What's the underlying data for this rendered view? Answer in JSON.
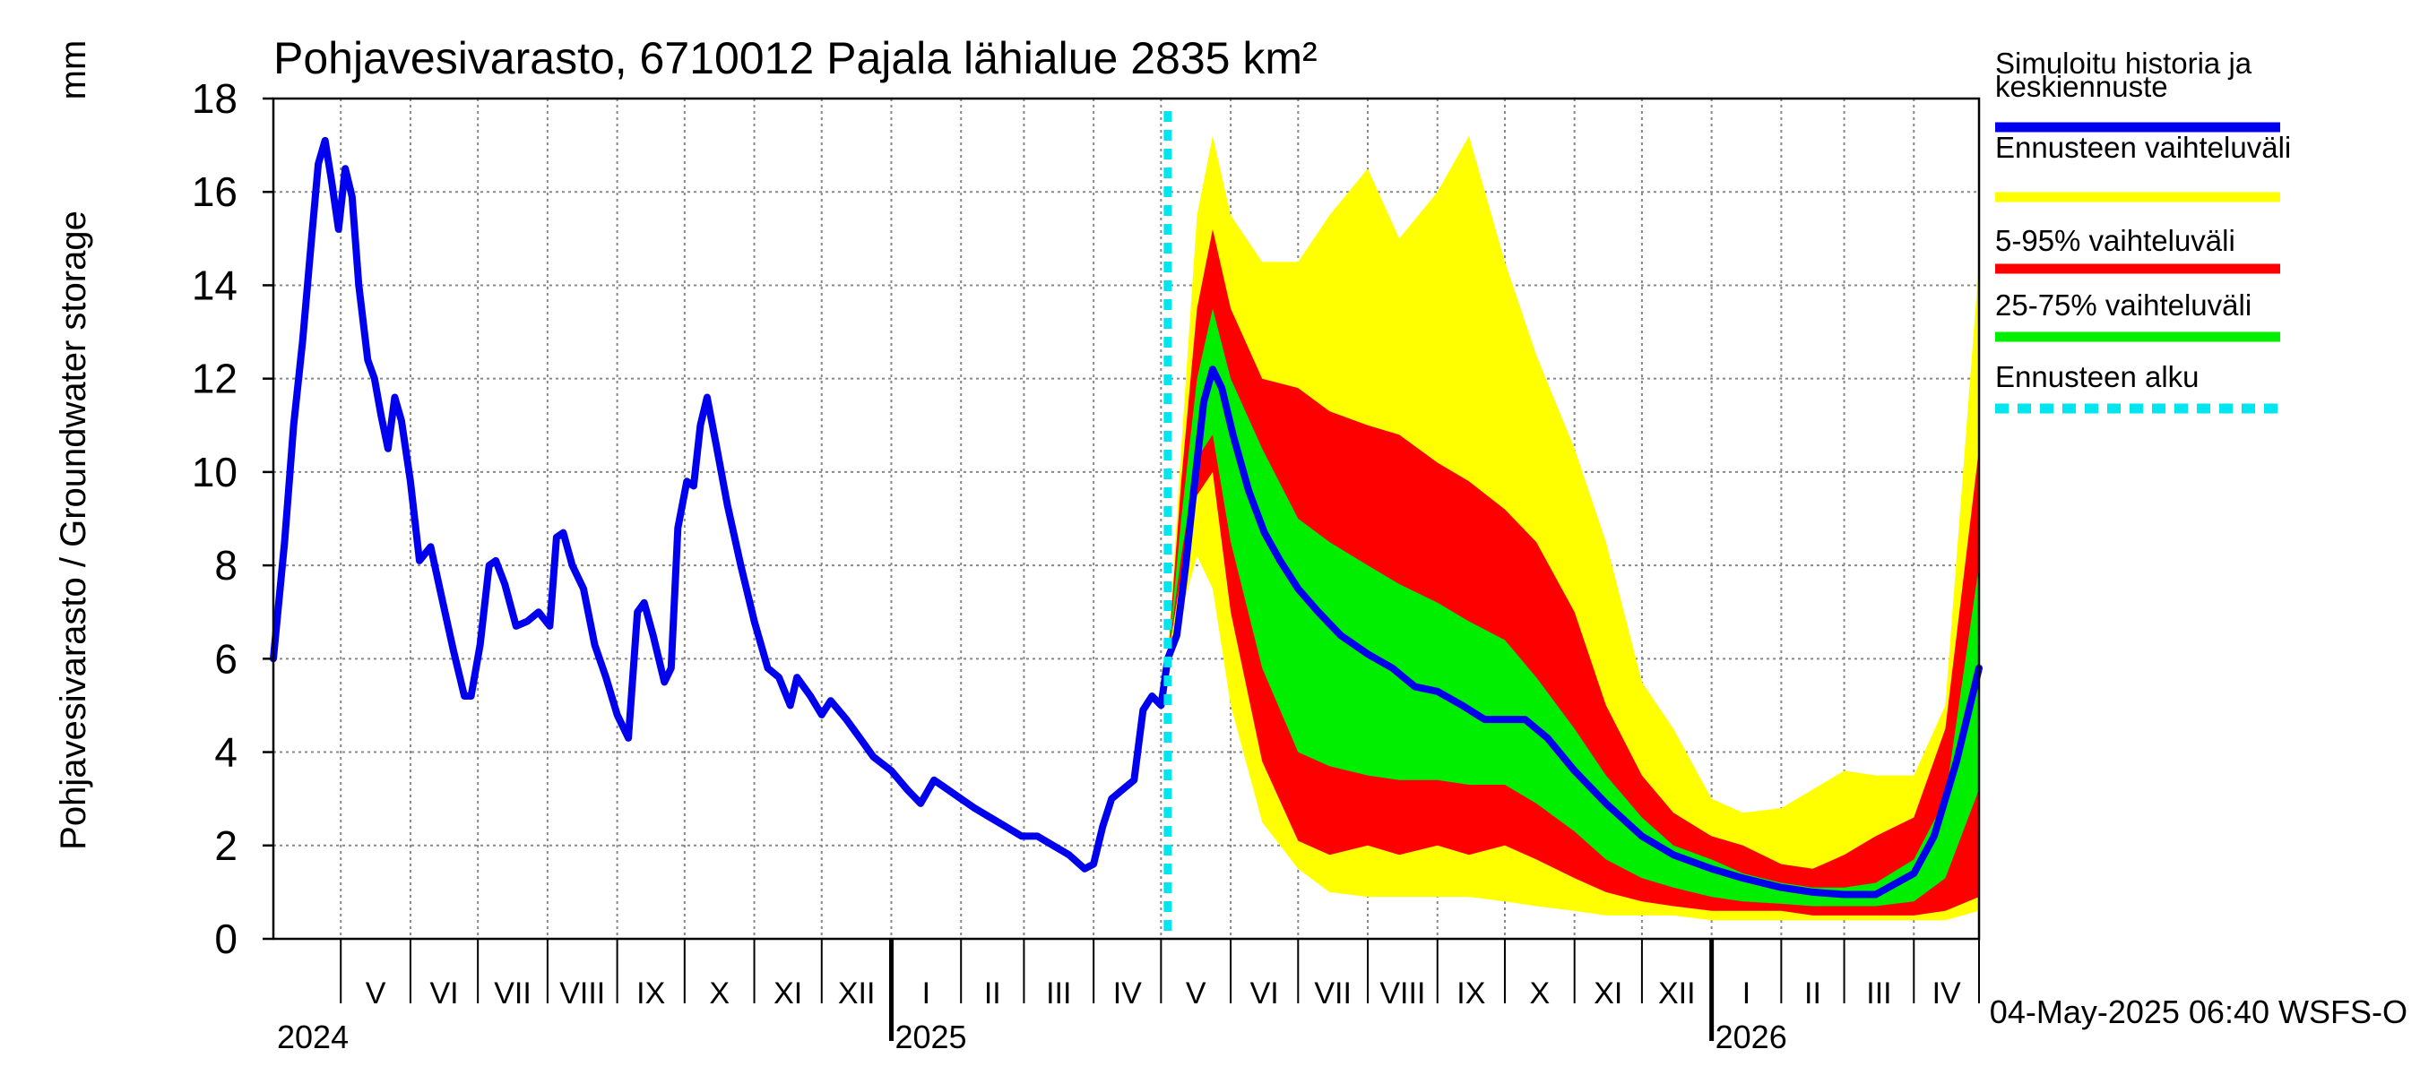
{
  "chart_data": {
    "type": "area",
    "title": "Pohjavesivarasto, 6710012 Pajala lähialue 2835 km²",
    "ylabel": "Pohjavesivarasto / Groundwater storage",
    "yunit": "mm",
    "ylim": [
      0,
      18
    ],
    "yticks": [
      0,
      2,
      4,
      6,
      8,
      10,
      12,
      14,
      16,
      18
    ],
    "xlim": [
      "2024-04-01",
      "2026-04-30"
    ],
    "grid": true,
    "legend_position": "right",
    "months": [
      {
        "label": "V",
        "start": "2024-05-01",
        "end": "2024-05-31"
      },
      {
        "label": "VI",
        "start": "2024-06-01",
        "end": "2024-06-30"
      },
      {
        "label": "VII",
        "start": "2024-07-01",
        "end": "2024-07-31"
      },
      {
        "label": "VIII",
        "start": "2024-08-01",
        "end": "2024-08-31"
      },
      {
        "label": "IX",
        "start": "2024-09-01",
        "end": "2024-09-30"
      },
      {
        "label": "X",
        "start": "2024-10-01",
        "end": "2024-10-31"
      },
      {
        "label": "XI",
        "start": "2024-11-01",
        "end": "2024-11-30"
      },
      {
        "label": "XII",
        "start": "2024-12-01",
        "end": "2024-12-31"
      },
      {
        "label": "I",
        "start": "2025-01-01",
        "end": "2025-01-31"
      },
      {
        "label": "II",
        "start": "2025-02-01",
        "end": "2025-02-28"
      },
      {
        "label": "III",
        "start": "2025-03-01",
        "end": "2025-03-31"
      },
      {
        "label": "IV",
        "start": "2025-04-01",
        "end": "2025-04-30"
      },
      {
        "label": "V",
        "start": "2025-05-01",
        "end": "2025-05-31"
      },
      {
        "label": "VI",
        "start": "2025-06-01",
        "end": "2025-06-30"
      },
      {
        "label": "VII",
        "start": "2025-07-01",
        "end": "2025-07-31"
      },
      {
        "label": "VIII",
        "start": "2025-08-01",
        "end": "2025-08-31"
      },
      {
        "label": "IX",
        "start": "2025-09-01",
        "end": "2025-09-30"
      },
      {
        "label": "X",
        "start": "2025-10-01",
        "end": "2025-10-31"
      },
      {
        "label": "XI",
        "start": "2025-11-01",
        "end": "2025-11-30"
      },
      {
        "label": "XII",
        "start": "2025-12-01",
        "end": "2025-12-31"
      },
      {
        "label": "I",
        "start": "2026-01-01",
        "end": "2026-01-31"
      },
      {
        "label": "II",
        "start": "2026-02-01",
        "end": "2026-02-28"
      },
      {
        "label": "III",
        "start": "2026-03-01",
        "end": "2026-03-31"
      },
      {
        "label": "IV",
        "start": "2026-04-01",
        "end": "2026-04-30"
      }
    ],
    "years": [
      {
        "label": "2024",
        "date": "2024-04-01"
      },
      {
        "label": "2025",
        "date": "2025-01-01"
      },
      {
        "label": "2026",
        "date": "2026-01-01"
      }
    ],
    "forecast_start": "2025-05-04",
    "timestamp": "04-May-2025 06:40 WSFS-O",
    "colors": {
      "history": "#0000ee",
      "full_range": "#ffff00",
      "p5_95": "#ff0000",
      "p25_75": "#00ee00",
      "forecast_start": "#00e5ee"
    },
    "legend": [
      {
        "key": "history",
        "label": "Simuloitu historia ja keskiennuste"
      },
      {
        "key": "full_range",
        "label": "Ennusteen vaihteluväli"
      },
      {
        "key": "p5_95",
        "label": "5-95% vaihteluväli"
      },
      {
        "key": "p25_75",
        "label": "25-75% vaihteluväli"
      },
      {
        "key": "forecast_start",
        "label": "Ennusteen alku"
      }
    ],
    "series": [
      {
        "name": "Simuloitu historia ja keskiennuste",
        "points": [
          [
            "2024-04-01",
            6.0
          ],
          [
            "2024-04-06",
            8.5
          ],
          [
            "2024-04-10",
            11.0
          ],
          [
            "2024-04-14",
            12.8
          ],
          [
            "2024-04-18",
            15.0
          ],
          [
            "2024-04-21",
            16.6
          ],
          [
            "2024-04-24",
            17.1
          ],
          [
            "2024-04-27",
            16.2
          ],
          [
            "2024-04-30",
            15.2
          ],
          [
            "2024-05-03",
            16.5
          ],
          [
            "2024-05-06",
            15.9
          ],
          [
            "2024-05-09",
            14.0
          ],
          [
            "2024-05-13",
            12.4
          ],
          [
            "2024-05-16",
            12.0
          ],
          [
            "2024-05-19",
            11.2
          ],
          [
            "2024-05-22",
            10.5
          ],
          [
            "2024-05-25",
            11.6
          ],
          [
            "2024-05-28",
            11.1
          ],
          [
            "2024-06-01",
            9.8
          ],
          [
            "2024-06-05",
            8.1
          ],
          [
            "2024-06-10",
            8.4
          ],
          [
            "2024-06-15",
            7.3
          ],
          [
            "2024-06-20",
            6.2
          ],
          [
            "2024-06-25",
            5.2
          ],
          [
            "2024-06-28",
            5.2
          ],
          [
            "2024-07-02",
            6.3
          ],
          [
            "2024-07-06",
            8.0
          ],
          [
            "2024-07-09",
            8.1
          ],
          [
            "2024-07-13",
            7.6
          ],
          [
            "2024-07-18",
            6.7
          ],
          [
            "2024-07-23",
            6.8
          ],
          [
            "2024-07-28",
            7.0
          ],
          [
            "2024-08-02",
            6.7
          ],
          [
            "2024-08-05",
            8.6
          ],
          [
            "2024-08-08",
            8.7
          ],
          [
            "2024-08-12",
            8.0
          ],
          [
            "2024-08-17",
            7.5
          ],
          [
            "2024-08-22",
            6.3
          ],
          [
            "2024-08-27",
            5.6
          ],
          [
            "2024-09-01",
            4.8
          ],
          [
            "2024-09-06",
            4.3
          ],
          [
            "2024-09-10",
            7.0
          ],
          [
            "2024-09-13",
            7.2
          ],
          [
            "2024-09-17",
            6.5
          ],
          [
            "2024-09-22",
            5.5
          ],
          [
            "2024-09-25",
            5.8
          ],
          [
            "2024-09-28",
            8.8
          ],
          [
            "2024-10-02",
            9.8
          ],
          [
            "2024-10-05",
            9.7
          ],
          [
            "2024-10-08",
            11.0
          ],
          [
            "2024-10-11",
            11.6
          ],
          [
            "2024-10-15",
            10.6
          ],
          [
            "2024-10-20",
            9.3
          ],
          [
            "2024-10-26",
            8.0
          ],
          [
            "2024-11-01",
            6.8
          ],
          [
            "2024-11-07",
            5.8
          ],
          [
            "2024-11-12",
            5.6
          ],
          [
            "2024-11-17",
            5.0
          ],
          [
            "2024-11-20",
            5.6
          ],
          [
            "2024-11-26",
            5.2
          ],
          [
            "2024-12-01",
            4.8
          ],
          [
            "2024-12-05",
            5.1
          ],
          [
            "2024-12-12",
            4.7
          ],
          [
            "2024-12-18",
            4.3
          ],
          [
            "2024-12-24",
            3.9
          ],
          [
            "2025-01-01",
            3.6
          ],
          [
            "2025-01-08",
            3.2
          ],
          [
            "2025-01-14",
            2.9
          ],
          [
            "2025-01-20",
            3.4
          ],
          [
            "2025-01-26",
            3.2
          ],
          [
            "2025-02-01",
            3.0
          ],
          [
            "2025-02-07",
            2.8
          ],
          [
            "2025-02-14",
            2.6
          ],
          [
            "2025-02-21",
            2.4
          ],
          [
            "2025-02-28",
            2.2
          ],
          [
            "2025-03-07",
            2.2
          ],
          [
            "2025-03-14",
            2.0
          ],
          [
            "2025-03-21",
            1.8
          ],
          [
            "2025-03-28",
            1.5
          ],
          [
            "2025-04-01",
            1.6
          ],
          [
            "2025-04-05",
            2.4
          ],
          [
            "2025-04-09",
            3.0
          ],
          [
            "2025-04-14",
            3.2
          ],
          [
            "2025-04-19",
            3.4
          ],
          [
            "2025-04-23",
            4.9
          ],
          [
            "2025-04-27",
            5.2
          ],
          [
            "2025-05-01",
            5.0
          ],
          [
            "2025-05-04",
            6.0
          ],
          [
            "2025-05-08",
            6.5
          ],
          [
            "2025-05-12",
            8.0
          ],
          [
            "2025-05-16",
            9.8
          ],
          [
            "2025-05-20",
            11.5
          ],
          [
            "2025-05-24",
            12.2
          ],
          [
            "2025-05-28",
            11.8
          ],
          [
            "2025-06-02",
            10.8
          ],
          [
            "2025-06-09",
            9.6
          ],
          [
            "2025-06-16",
            8.7
          ],
          [
            "2025-06-23",
            8.1
          ],
          [
            "2025-07-01",
            7.5
          ],
          [
            "2025-07-10",
            7.0
          ],
          [
            "2025-07-20",
            6.5
          ],
          [
            "2025-08-01",
            6.1
          ],
          [
            "2025-08-12",
            5.8
          ],
          [
            "2025-08-22",
            5.4
          ],
          [
            "2025-09-01",
            5.3
          ],
          [
            "2025-09-12",
            5.0
          ],
          [
            "2025-09-22",
            4.7
          ],
          [
            "2025-10-01",
            4.7
          ],
          [
            "2025-10-10",
            4.7
          ],
          [
            "2025-10-20",
            4.3
          ],
          [
            "2025-11-01",
            3.6
          ],
          [
            "2025-11-15",
            2.9
          ],
          [
            "2025-12-01",
            2.2
          ],
          [
            "2025-12-15",
            1.8
          ],
          [
            "2026-01-01",
            1.5
          ],
          [
            "2026-01-15",
            1.3
          ],
          [
            "2026-02-01",
            1.1
          ],
          [
            "2026-02-15",
            1.0
          ],
          [
            "2026-03-01",
            0.95
          ],
          [
            "2026-03-15",
            0.95
          ],
          [
            "2026-04-01",
            1.4
          ],
          [
            "2026-04-10",
            2.2
          ],
          [
            "2026-04-20",
            3.8
          ],
          [
            "2026-04-30",
            5.8
          ]
        ]
      }
    ],
    "bands": {
      "dates": [
        "2025-05-04",
        "2025-05-10",
        "2025-05-17",
        "2025-05-24",
        "2025-06-01",
        "2025-06-15",
        "2025-07-01",
        "2025-07-15",
        "2025-08-01",
        "2025-08-15",
        "2025-09-01",
        "2025-09-15",
        "2025-10-01",
        "2025-10-15",
        "2025-11-01",
        "2025-11-15",
        "2025-12-01",
        "2025-12-15",
        "2026-01-01",
        "2026-01-15",
        "2026-02-01",
        "2026-02-15",
        "2026-03-01",
        "2026-03-15",
        "2026-04-01",
        "2026-04-15",
        "2026-04-30"
      ],
      "min": [
        6.0,
        7.0,
        8.2,
        7.5,
        5.0,
        2.5,
        1.5,
        1.0,
        0.9,
        0.9,
        0.9,
        0.9,
        0.8,
        0.7,
        0.6,
        0.5,
        0.5,
        0.5,
        0.4,
        0.4,
        0.4,
        0.4,
        0.4,
        0.4,
        0.4,
        0.4,
        0.6
      ],
      "p5": [
        6.0,
        7.8,
        9.5,
        10.0,
        7.0,
        3.8,
        2.1,
        1.8,
        2.0,
        1.8,
        2.0,
        1.8,
        2.0,
        1.7,
        1.3,
        1.0,
        0.8,
        0.7,
        0.6,
        0.6,
        0.6,
        0.5,
        0.5,
        0.5,
        0.5,
        0.6,
        0.9
      ],
      "p25": [
        6.0,
        8.2,
        10.3,
        10.8,
        8.5,
        5.8,
        4.0,
        3.7,
        3.5,
        3.4,
        3.4,
        3.3,
        3.3,
        2.9,
        2.3,
        1.7,
        1.3,
        1.1,
        0.9,
        0.8,
        0.75,
        0.7,
        0.7,
        0.7,
        0.8,
        1.3,
        3.2
      ],
      "p75": [
        6.0,
        9.0,
        12.0,
        13.5,
        12.0,
        10.5,
        9.0,
        8.5,
        8.0,
        7.6,
        7.2,
        6.8,
        6.4,
        5.6,
        4.5,
        3.5,
        2.6,
        2.0,
        1.7,
        1.4,
        1.2,
        1.1,
        1.1,
        1.2,
        1.7,
        3.0,
        8.0
      ],
      "p95": [
        6.0,
        9.8,
        13.5,
        15.2,
        13.5,
        12.0,
        11.8,
        11.3,
        11.0,
        10.8,
        10.2,
        9.8,
        9.2,
        8.5,
        7.0,
        5.0,
        3.5,
        2.7,
        2.2,
        2.0,
        1.6,
        1.5,
        1.8,
        2.2,
        2.6,
        4.5,
        10.5
      ],
      "max": [
        6.0,
        10.5,
        15.5,
        17.2,
        15.5,
        14.5,
        14.5,
        15.5,
        16.5,
        15.0,
        16.0,
        17.2,
        14.5,
        12.5,
        10.5,
        8.5,
        5.5,
        4.5,
        3.0,
        2.7,
        2.8,
        3.2,
        3.6,
        3.5,
        3.5,
        5.0,
        14.5
      ]
    }
  }
}
